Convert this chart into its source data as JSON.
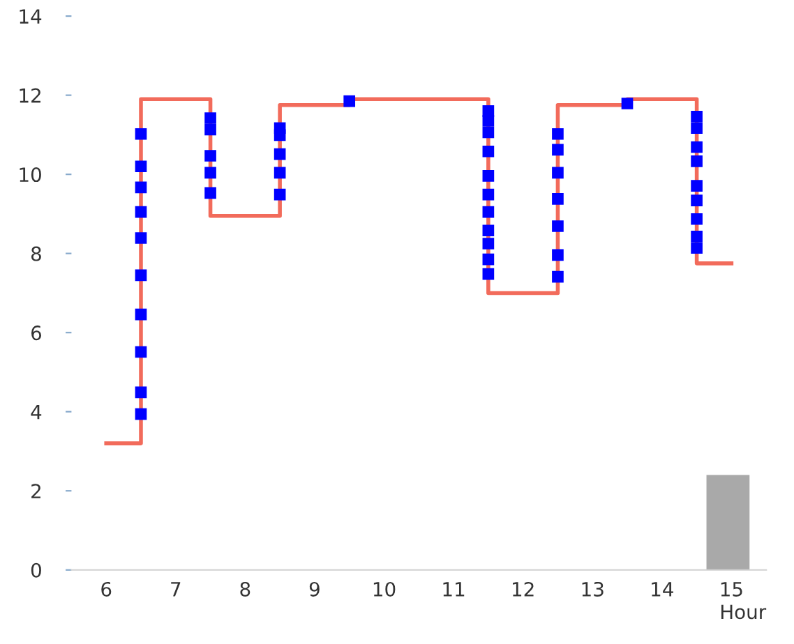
{
  "chart_data": {
    "type": "step",
    "xlabel": "Hour",
    "xlim": [
      5.5,
      15.5
    ],
    "ylim": [
      0,
      14
    ],
    "xticks": [
      6,
      7,
      8,
      9,
      10,
      11,
      12,
      13,
      14,
      15
    ],
    "yticks": [
      0,
      2,
      4,
      6,
      8,
      10,
      12,
      14
    ],
    "grid": false,
    "legend": false,
    "series": [
      {
        "type": "bar",
        "color": "#a9a9a9",
        "x": [
          14.95
        ],
        "values": [
          2.4
        ]
      },
      {
        "color": "#f26b5b",
        "x": [
          6,
          6.5,
          7.5,
          8.5,
          9.5,
          11.5,
          12.5,
          13.5,
          14.5,
          15
        ],
        "values": [
          3.2,
          11.9,
          8.95,
          11.75,
          11.9,
          7.0,
          11.75,
          11.9,
          7.75,
          7.75
        ]
      },
      {
        "type": "scatter",
        "color": "#0000ff",
        "x": [
          6.5,
          6.5,
          6.5,
          6.5,
          6.5,
          6.5,
          6.5,
          6.5,
          6.5,
          6.5,
          7.5,
          7.5,
          7.5,
          7.5,
          7.5,
          8.5,
          8.5,
          8.5,
          8.5,
          8.5,
          9.5,
          11.5,
          11.5,
          11.5,
          11.5,
          11.5,
          11.5,
          11.5,
          11.5,
          11.5,
          11.5,
          11.5,
          12.5,
          12.5,
          12.5,
          12.5,
          12.5,
          12.5,
          12.5,
          13.5,
          14.5,
          14.5,
          14.5,
          14.5,
          14.5,
          14.5,
          14.5,
          14.5,
          14.5
        ],
        "values": [
          11.02,
          10.2,
          9.67,
          9.05,
          8.39,
          7.45,
          6.46,
          5.51,
          4.49,
          3.94,
          11.42,
          11.13,
          10.47,
          10.04,
          9.53,
          11.17,
          10.99,
          10.51,
          10.04,
          9.49,
          11.85,
          11.6,
          11.35,
          11.06,
          10.58,
          9.96,
          9.49,
          9.05,
          8.58,
          8.25,
          7.85,
          7.48,
          11.02,
          10.62,
          10.04,
          9.38,
          8.69,
          7.96,
          7.41,
          11.79,
          11.46,
          11.17,
          10.69,
          10.33,
          9.71,
          9.34,
          8.87,
          8.43,
          8.14
        ]
      }
    ]
  }
}
